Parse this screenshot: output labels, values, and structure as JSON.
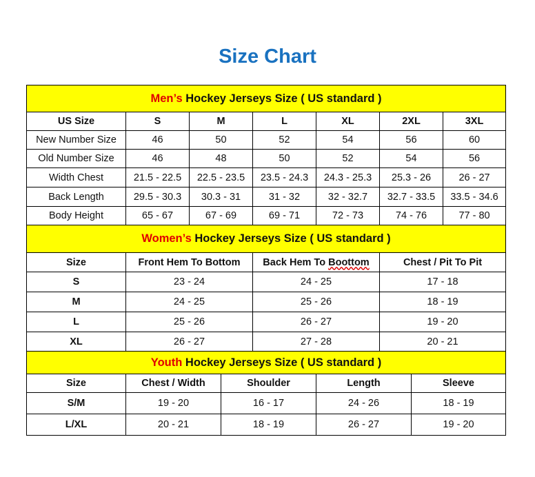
{
  "title": "Size Chart",
  "colors": {
    "title": "#1a72c0",
    "header_bg": "#ffff00",
    "accent_red": "#e00000"
  },
  "men": {
    "heading_red": "Men’s",
    "heading_rest": " Hockey Jerseys Size ( US standard )",
    "columns": [
      "US Size",
      "S",
      "M",
      "L",
      "XL",
      "2XL",
      "3XL"
    ],
    "rows": [
      [
        "New Number Size",
        "46",
        "50",
        "52",
        "54",
        "56",
        "60"
      ],
      [
        "Old Number Size",
        "46",
        "48",
        "50",
        "52",
        "54",
        "56"
      ],
      [
        "Width Chest",
        "21.5 - 22.5",
        "22.5 - 23.5",
        "23.5 - 24.3",
        "24.3 - 25.3",
        "25.3 - 26",
        "26 - 27"
      ],
      [
        "Back Length",
        "29.5 - 30.3",
        "30.3 - 31",
        "31 - 32",
        "32 - 32.7",
        "32.7 - 33.5",
        "33.5 - 34.6"
      ],
      [
        "Body Height",
        "65 - 67",
        "67 - 69",
        "69 - 71",
        "72 - 73",
        "74 - 76",
        "77 - 80"
      ]
    ]
  },
  "women": {
    "heading_red": "Women’s",
    "heading_rest": " Hockey Jerseys Size ( US standard )",
    "columns": [
      "Size",
      "Front Hem To Bottom",
      "Back Hem To Boottom",
      "Chest / Pit To Pit"
    ],
    "rows": [
      [
        "S",
        "23 - 24",
        "24 - 25",
        "17 - 18"
      ],
      [
        "M",
        "24 - 25",
        "25 - 26",
        "18 - 19"
      ],
      [
        "L",
        "25 - 26",
        "26 - 27",
        "19 - 20"
      ],
      [
        "XL",
        "26 - 27",
        "27 - 28",
        "20 - 21"
      ]
    ]
  },
  "youth": {
    "heading_red": "Youth",
    "heading_rest": " Hockey Jerseys Size ( US standard )",
    "columns": [
      "Size",
      "Chest / Width",
      "Shoulder",
      "Length",
      "Sleeve"
    ],
    "rows": [
      [
        "S/M",
        "19 - 20",
        "16 - 17",
        "24 - 26",
        "18 - 19"
      ],
      [
        "L/XL",
        "20 - 21",
        "18 - 19",
        "26 - 27",
        "19 - 20"
      ]
    ]
  }
}
